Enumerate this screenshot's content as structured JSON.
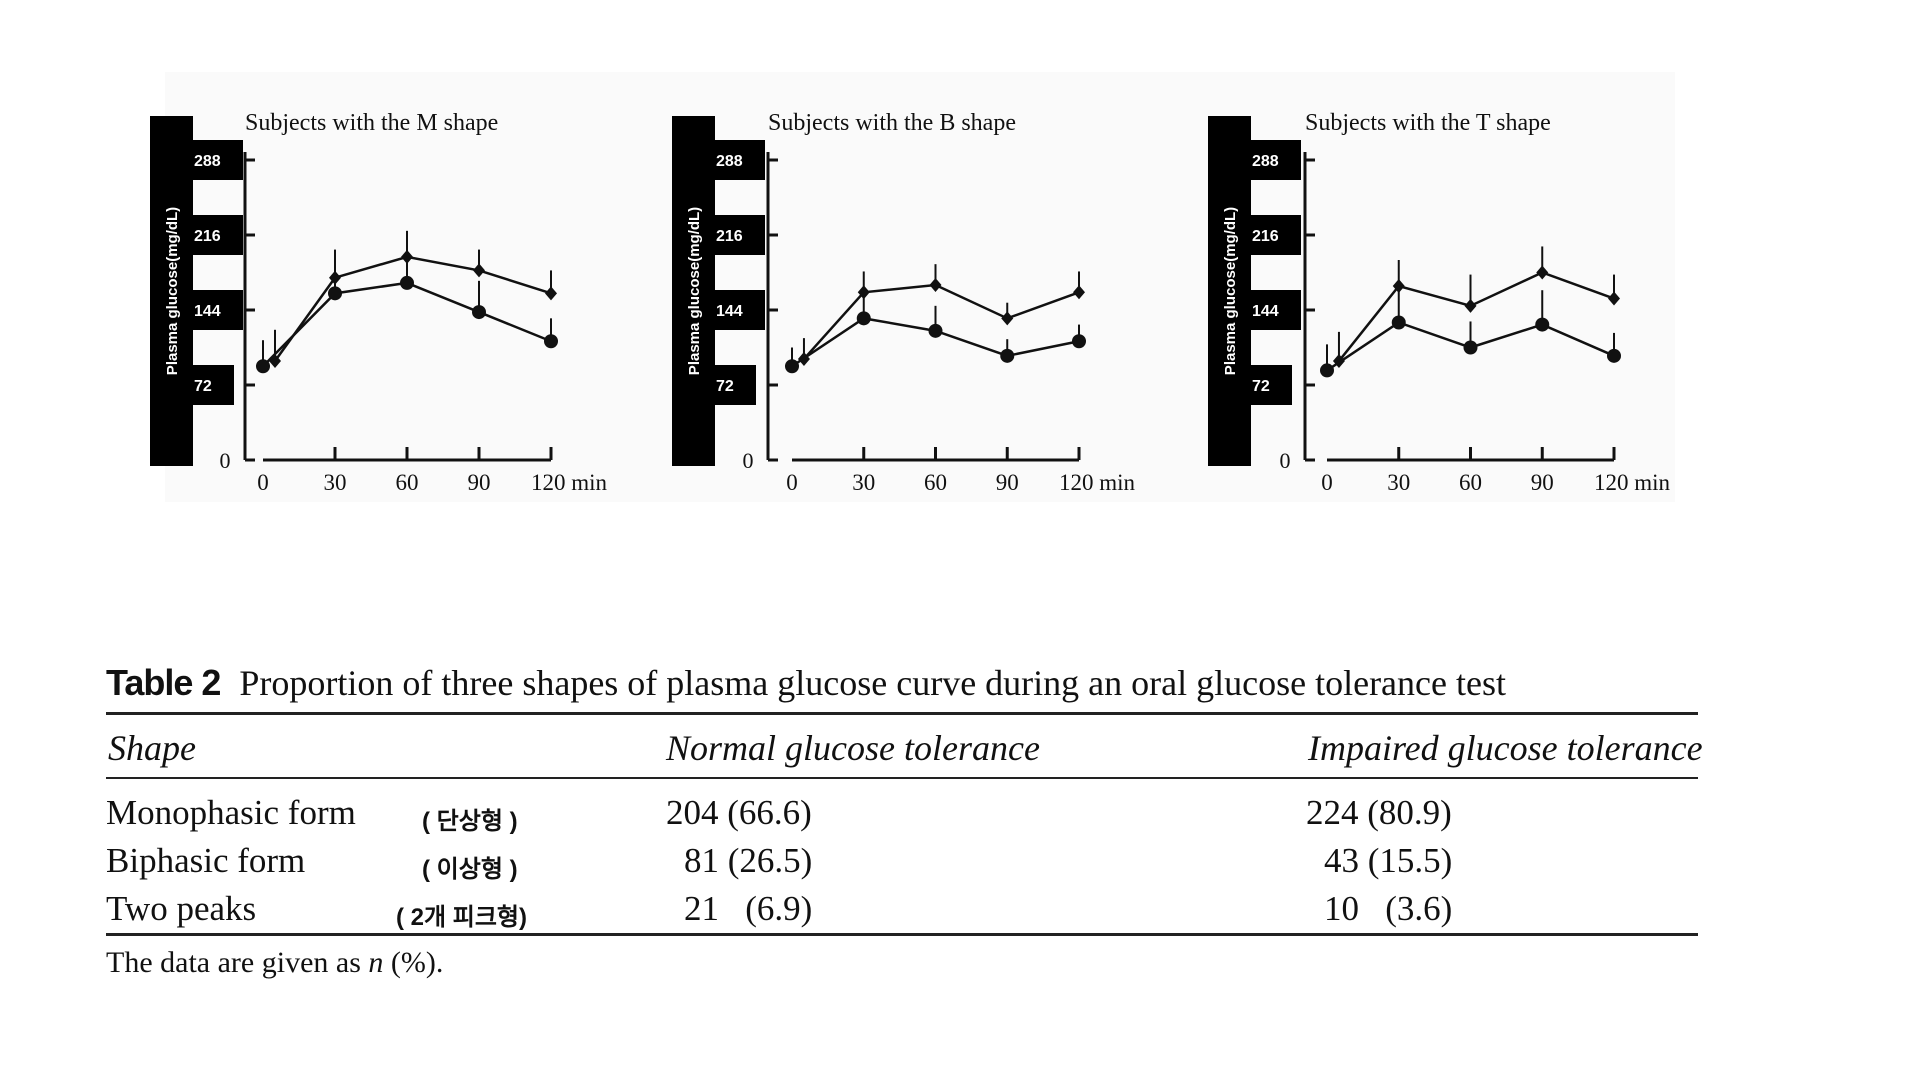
{
  "chart_data": [
    {
      "type": "line",
      "title": "Subjects with the M shape",
      "ylabel": "Plasma glucose(mg/dL)",
      "x_tick_labels": [
        "0",
        "30",
        "60",
        "90",
        "120 min"
      ],
      "y_tick_labels": [
        "0",
        "72",
        "144",
        "216",
        "288"
      ],
      "xlim": [
        0,
        120
      ],
      "ylim": [
        0,
        288
      ],
      "series": [
        {
          "marker": "diamond",
          "x": [
            5,
            30,
            60,
            90,
            120
          ],
          "y": [
            95,
            175,
            195,
            182,
            160
          ],
          "err": [
            30,
            27,
            25,
            20,
            22
          ]
        },
        {
          "marker": "circle",
          "x": [
            0,
            30,
            60,
            90,
            120
          ],
          "y": [
            90,
            160,
            170,
            142,
            114
          ],
          "err": [
            25,
            25,
            25,
            30,
            22
          ]
        }
      ]
    },
    {
      "type": "line",
      "title": "Subjects with the B shape",
      "ylabel": "Plasma glucose(mg/dL)",
      "x_tick_labels": [
        "0",
        "30",
        "60",
        "90",
        "120 min"
      ],
      "y_tick_labels": [
        "0",
        "72",
        "144",
        "216",
        "288"
      ],
      "xlim": [
        0,
        120
      ],
      "ylim": [
        0,
        288
      ],
      "series": [
        {
          "marker": "diamond",
          "x": [
            5,
            30,
            60,
            90,
            120
          ],
          "y": [
            97,
            161,
            168,
            136,
            161
          ],
          "err": [
            20,
            20,
            20,
            15,
            20
          ]
        },
        {
          "marker": "circle",
          "x": [
            0,
            30,
            60,
            90,
            120
          ],
          "y": [
            90,
            136,
            124,
            100,
            114
          ],
          "err": [
            18,
            20,
            24,
            16,
            16
          ]
        }
      ]
    },
    {
      "type": "line",
      "title": "Subjects with the T shape",
      "ylabel": "Plasma glucose(mg/dL)",
      "x_tick_labels": [
        "0",
        "30",
        "60",
        "90",
        "120 min"
      ],
      "y_tick_labels": [
        "0",
        "72",
        "144",
        "216",
        "288"
      ],
      "xlim": [
        0,
        120
      ],
      "ylim": [
        0,
        288
      ],
      "series": [
        {
          "marker": "diamond",
          "x": [
            5,
            30,
            60,
            90,
            120
          ],
          "y": [
            95,
            167,
            148,
            180,
            155
          ],
          "err": [
            28,
            25,
            30,
            25,
            23
          ]
        },
        {
          "marker": "circle",
          "x": [
            0,
            30,
            60,
            90,
            120
          ],
          "y": [
            86,
            132,
            108,
            130,
            100
          ],
          "err": [
            25,
            30,
            25,
            33,
            22
          ]
        }
      ]
    }
  ],
  "table": {
    "label": "Table 2",
    "caption": "Proportion of three shapes of plasma glucose curve during an oral glucose tolerance test",
    "headers": [
      "Shape",
      "Normal glucose tolerance",
      "Impaired glucose tolerance"
    ],
    "rows": [
      {
        "shape": "Monophasic form",
        "note": "( 단상형 )",
        "normal": "204 (66.6)",
        "impaired": "224 (80.9)"
      },
      {
        "shape": "Biphasic form",
        "note": "( 이상형 )",
        "normal": "81 (26.5)",
        "impaired": "43 (15.5)"
      },
      {
        "shape": "Two peaks",
        "note": "( 2개 피크형)",
        "normal": "21   (6.9)",
        "impaired": "10   (3.6)"
      }
    ],
    "footnote_pre": "The data are given as ",
    "footnote_n": "n",
    "footnote_post": " (%)."
  }
}
